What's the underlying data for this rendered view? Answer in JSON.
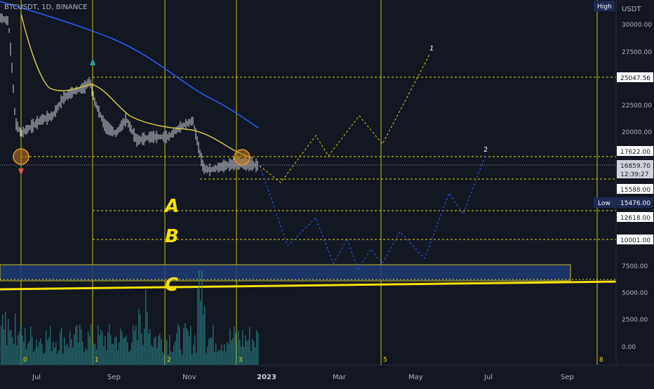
{
  "header": {
    "symbol_label": "BTCUSDT, 1D, BINANCE"
  },
  "axis": {
    "currency": "USDT",
    "high_badge": "High",
    "low_badge": "Low",
    "ticks": [
      "30000.00",
      "27500.00",
      "22500.00",
      "20000.00",
      "7500.00",
      "5000.00",
      "2500.00",
      "0.00"
    ],
    "time_labels": [
      "Jul",
      "Sep",
      "Nov",
      "2023",
      "Mar",
      "May",
      "Jul",
      "Sep"
    ]
  },
  "price_tags": {
    "level_25047": "25047.56",
    "level_17622": "17622.00",
    "current": "16859.70",
    "countdown": "12:39:27",
    "level_15588": "15588.00",
    "low": "15476.00",
    "level_12618": "12618.00",
    "level_10001": "10001.00"
  },
  "wave_labels": {
    "a": "A",
    "b": "B",
    "c": "C"
  },
  "path_labels": {
    "path1": "1",
    "path2": "2"
  },
  "cycle_labels": [
    "0",
    "1",
    "2",
    "3",
    "5",
    "8"
  ],
  "colors": {
    "background": "#131722",
    "yellow": "#f5e10a",
    "blue_ma": "#2962ff",
    "yellow_ma": "#d4c44a",
    "volume": "#2a8a8a",
    "tag_bg": "#ffffff",
    "low_tag_bg": "#1e2a52",
    "high_tag_bg": "#1e2a52"
  }
}
